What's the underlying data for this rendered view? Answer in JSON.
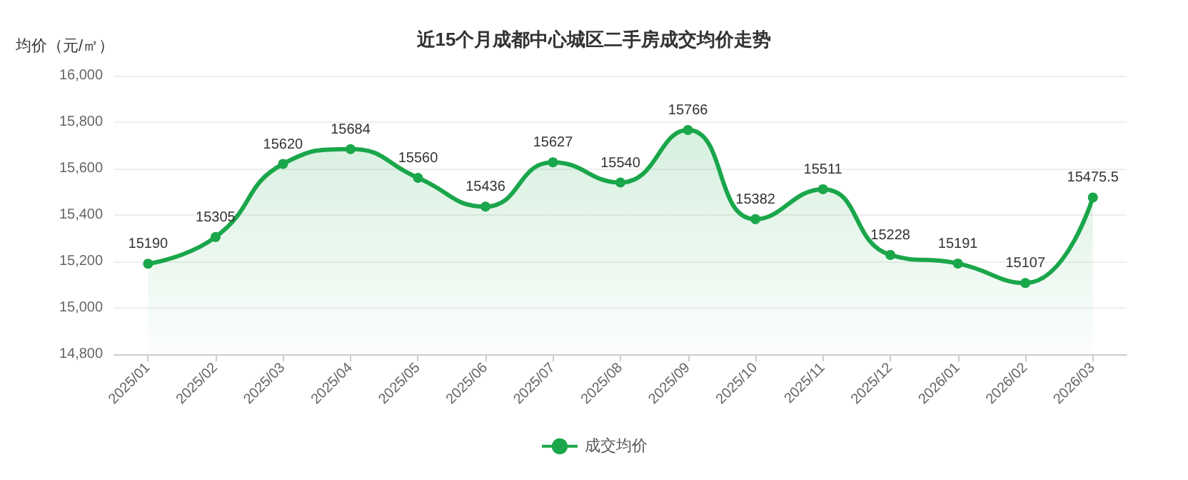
{
  "chart_data": {
    "type": "area",
    "title": "近15个月成都中心城区二手房成交均价走势",
    "ylabel": "均价（元/㎡）",
    "categories": [
      "2025/01",
      "2025/02",
      "2025/03",
      "2025/04",
      "2025/05",
      "2025/06",
      "2025/07",
      "2025/08",
      "2025/09",
      "2025/10",
      "2025/11",
      "2025/12",
      "2026/01",
      "2026/02",
      "2026/03"
    ],
    "series": [
      {
        "name": "成交均价",
        "color": "#1aa64a",
        "values": [
          15190,
          15305,
          15620,
          15684,
          15560,
          15436,
          15627,
          15540,
          15766,
          15382,
          15511,
          15228,
          15191,
          15107,
          15475.5
        ]
      }
    ],
    "ylim": [
      14800,
      16000
    ],
    "yticks": [
      {
        "value": 14800,
        "label": "14,800"
      },
      {
        "value": 15000,
        "label": "15,000"
      },
      {
        "value": 15200,
        "label": "15,200"
      },
      {
        "value": 15400,
        "label": "15,400"
      },
      {
        "value": 15600,
        "label": "15,600"
      },
      {
        "value": 15800,
        "label": "15,800"
      },
      {
        "value": 16000,
        "label": "16,000"
      }
    ],
    "grid": "y",
    "legend": "bottom",
    "marker": "circle",
    "data_labels": true
  }
}
